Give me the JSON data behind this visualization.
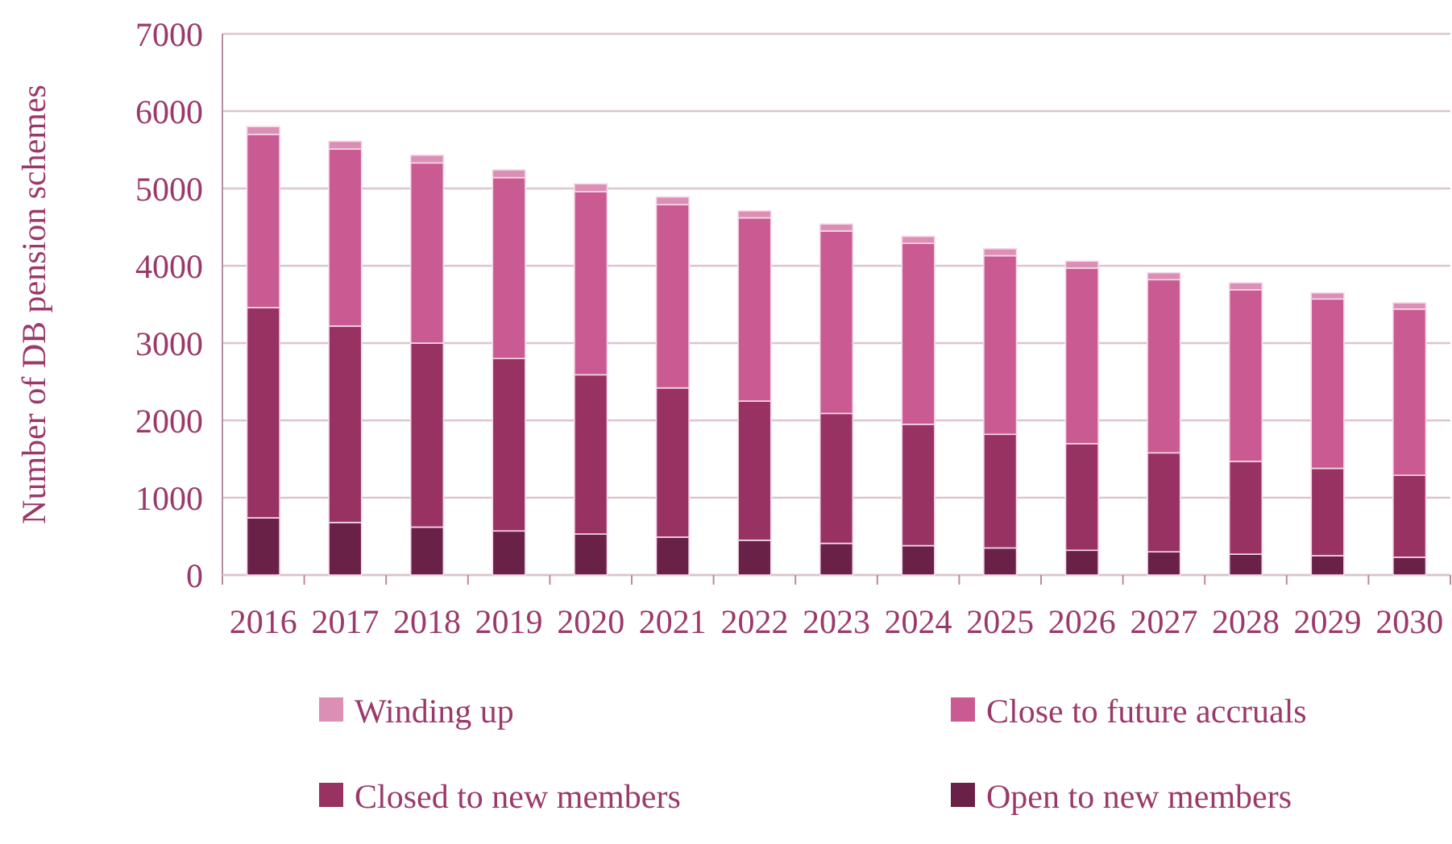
{
  "chart_data": {
    "type": "bar",
    "stacked": true,
    "ylabel": "Number of DB pension schemes",
    "categories": [
      "2016",
      "2017",
      "2018",
      "2019",
      "2020",
      "2021",
      "2022",
      "2023",
      "2024",
      "2025",
      "2026",
      "2027",
      "2028",
      "2029",
      "2030"
    ],
    "series": [
      {
        "name": "Open to new members",
        "color": "#6a2147",
        "values": [
          740,
          680,
          620,
          570,
          530,
          490,
          450,
          410,
          380,
          350,
          320,
          300,
          270,
          250,
          230
        ]
      },
      {
        "name": "Closed to new members",
        "color": "#973262",
        "values": [
          2720,
          2540,
          2380,
          2230,
          2060,
          1930,
          1800,
          1680,
          1570,
          1470,
          1380,
          1280,
          1200,
          1130,
          1060
        ]
      },
      {
        "name": "Close to future accruals",
        "color": "#c95b92",
        "values": [
          2240,
          2290,
          2330,
          2340,
          2370,
          2370,
          2370,
          2360,
          2340,
          2310,
          2270,
          2240,
          2220,
          2190,
          2150
        ]
      },
      {
        "name": "Winding up",
        "color": "#dc8fb5",
        "values": [
          100,
          100,
          100,
          100,
          100,
          100,
          90,
          90,
          90,
          90,
          90,
          90,
          90,
          80,
          80
        ]
      }
    ],
    "ylim": [
      0,
      7000
    ],
    "yticks": [
      0,
      1000,
      2000,
      3000,
      4000,
      5000,
      6000,
      7000
    ],
    "grid": "y",
    "legend": "bottom"
  }
}
